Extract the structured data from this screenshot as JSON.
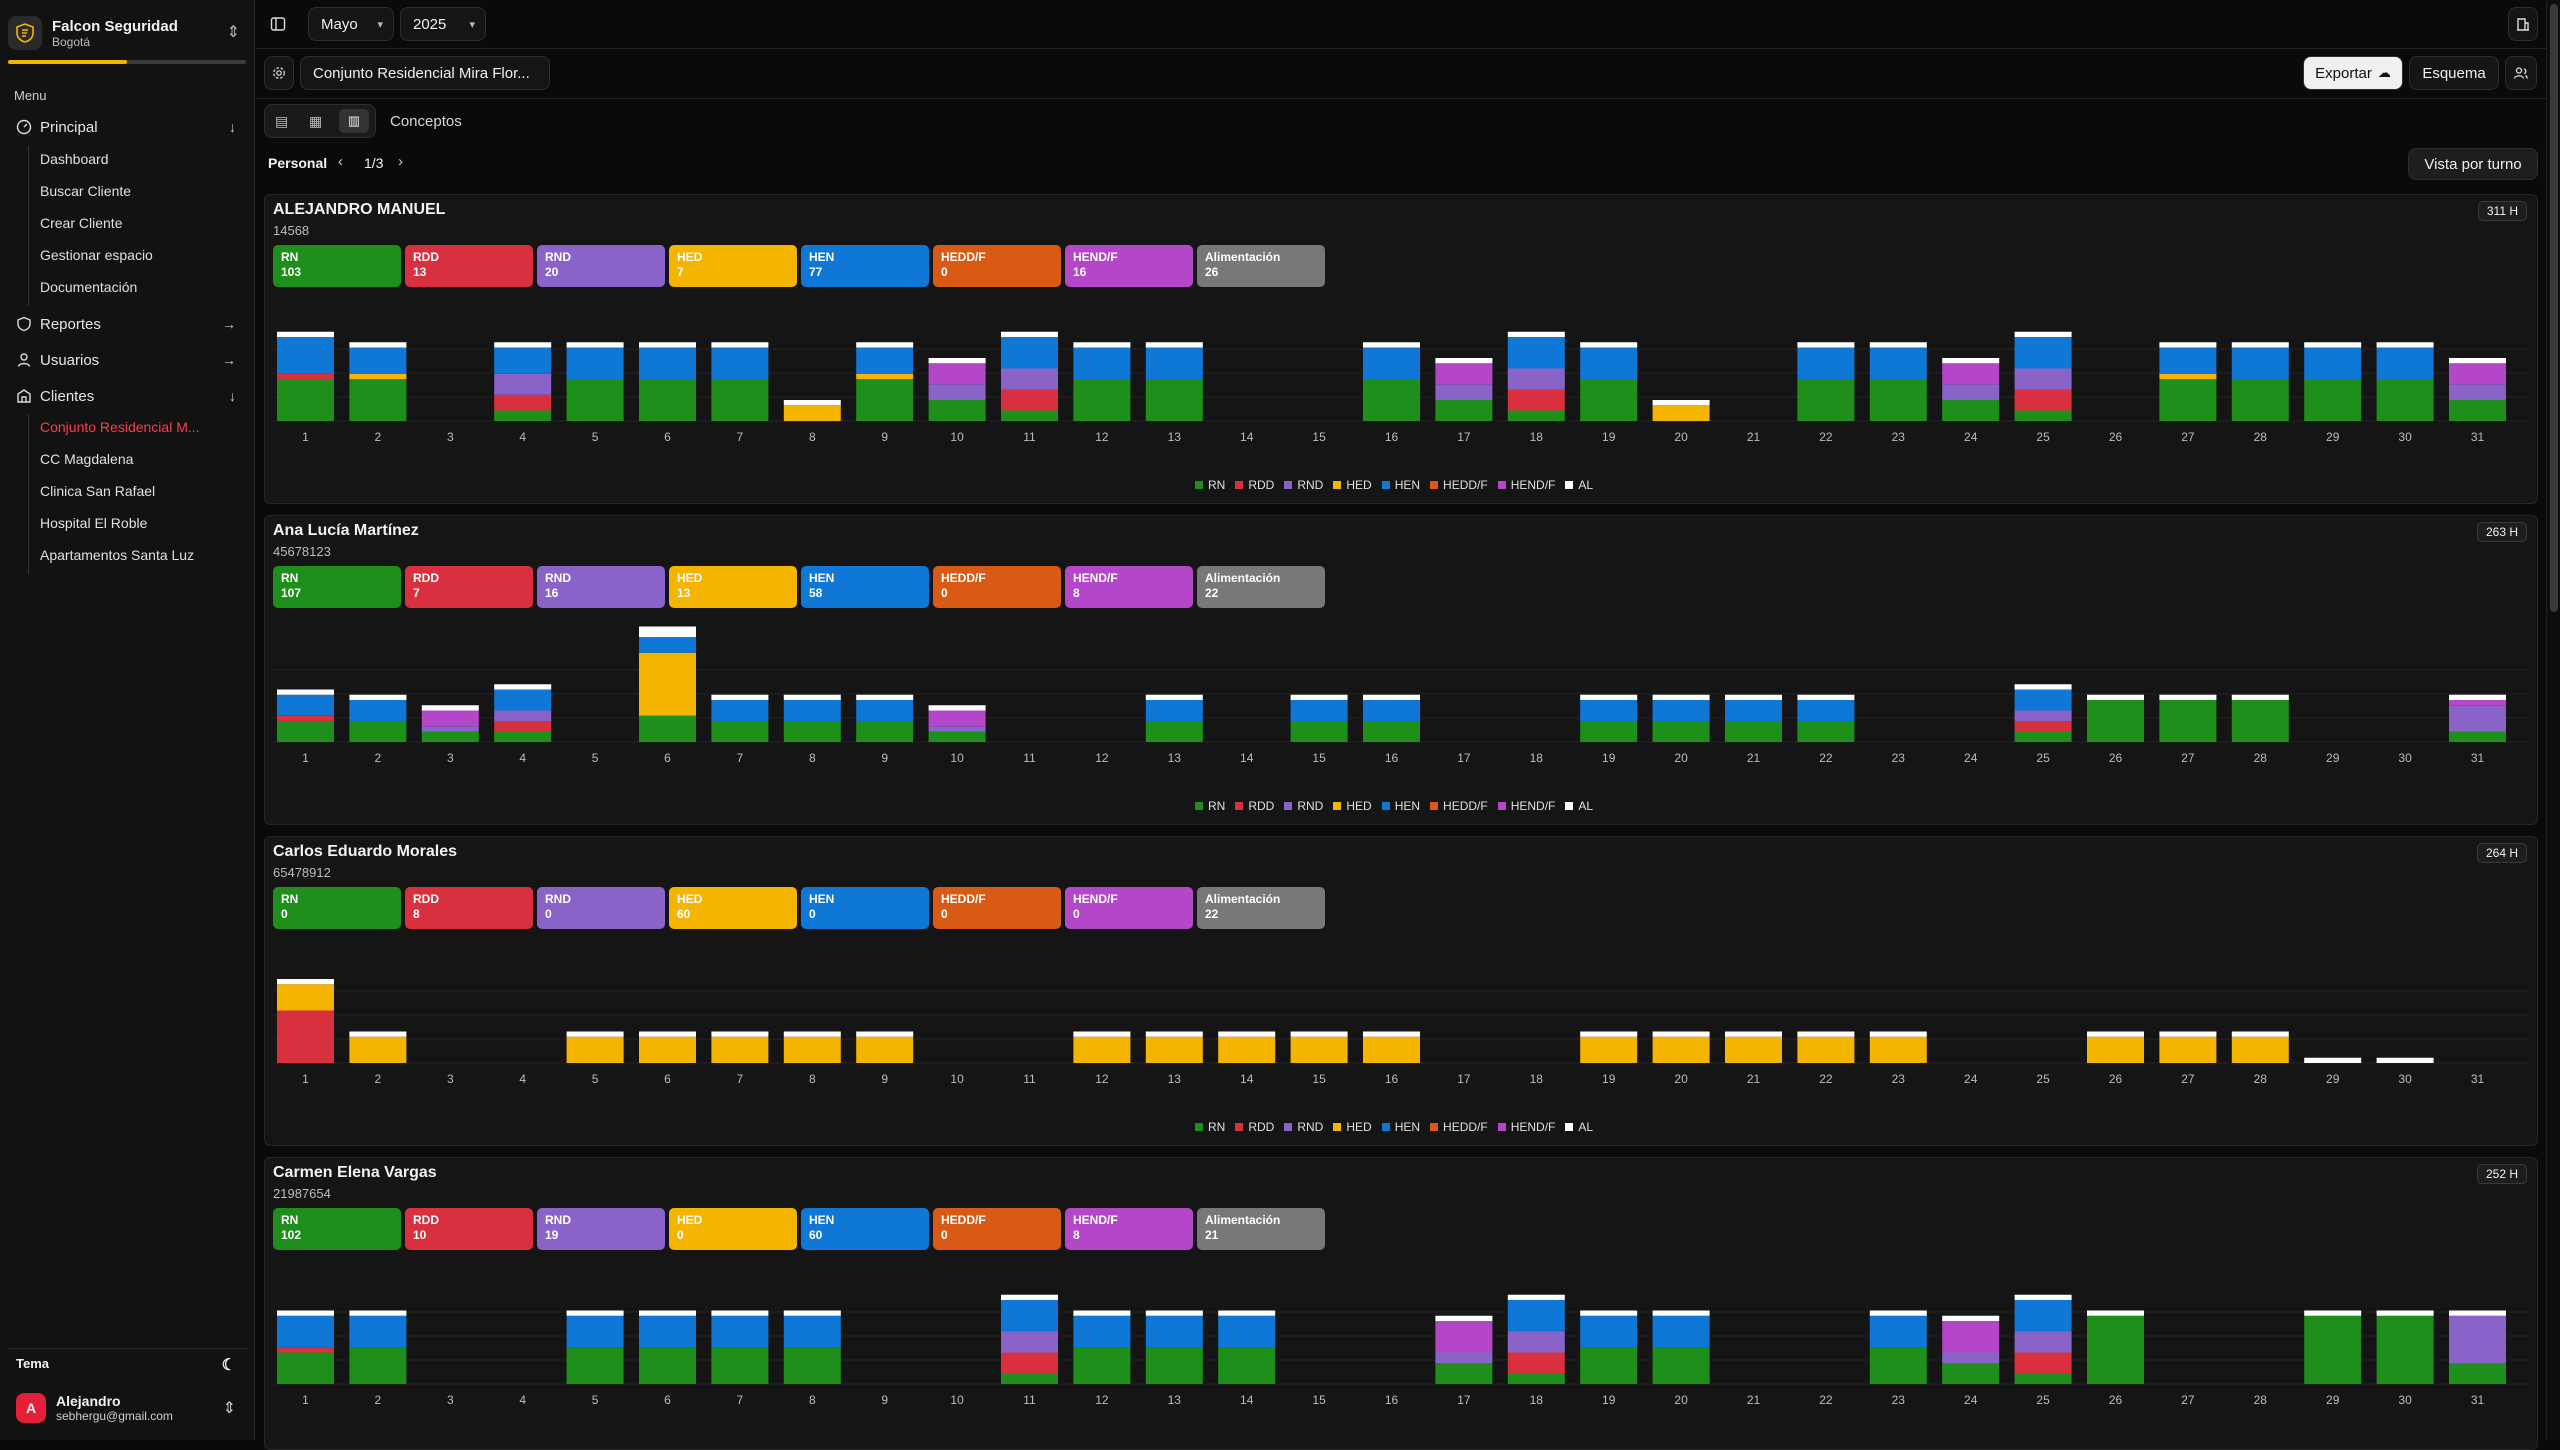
{
  "org": {
    "name": "Falcon Seguridad",
    "city": "Bogotá"
  },
  "menu": {
    "label": "Menu",
    "principal": "Principal",
    "principal_items": [
      "Dashboard",
      "Buscar Cliente",
      "Crear Cliente",
      "Gestionar espacio",
      "Documentación"
    ],
    "reportes": "Reportes",
    "usuarios": "Usuarios",
    "clientes": "Clientes",
    "clientes_items": [
      "Conjunto Residencial M...",
      "CC Magdalena",
      "Clinica San Rafael",
      "Hospital El Roble",
      "Apartamentos Santa Luz"
    ]
  },
  "theme_label": "Tema",
  "user": {
    "name": "Alejandro",
    "email": "sebhergu@gmail.com",
    "initial": "A"
  },
  "header": {
    "month": "Mayo",
    "year": "2025",
    "client": "Conjunto Residencial Mira Flor...",
    "export": "Exportar",
    "schema": "Esquema"
  },
  "view": {
    "concepts": "Conceptos",
    "personal": "Personal",
    "page": "1/3",
    "shift_view": "Vista por turno"
  },
  "colors": {
    "RN": "#1f8f1c",
    "RDD": "#d93040",
    "RND": "#8a63c9",
    "HED": "#f5b400",
    "HEN": "#0f78d6",
    "HEDDF": "#d85a14",
    "HENDF": "#b447c9",
    "AL": "#ffffff",
    "ALIM": "#787878"
  },
  "legend": [
    "RN",
    "RDD",
    "RND",
    "HED",
    "HEN",
    "HEDD/F",
    "HEND/F",
    "AL"
  ],
  "people": [
    {
      "name": "ALEJANDRO MANUEL",
      "id": "14568",
      "hours": "311 H",
      "chips": [
        {
          "label": "RN",
          "value": "103"
        },
        {
          "label": "RDD",
          "value": "13"
        },
        {
          "label": "RND",
          "value": "20"
        },
        {
          "label": "HED",
          "value": "7"
        },
        {
          "label": "HEN",
          "value": "77"
        },
        {
          "label": "HEDD/F",
          "value": "0"
        },
        {
          "label": "HEND/F",
          "value": "16"
        },
        {
          "label": "Alimentación",
          "value": "26"
        }
      ]
    },
    {
      "name": "Ana Lucía Martínez",
      "id": "45678123",
      "hours": "263 H",
      "chips": [
        {
          "label": "RN",
          "value": "107"
        },
        {
          "label": "RDD",
          "value": "7"
        },
        {
          "label": "RND",
          "value": "16"
        },
        {
          "label": "HED",
          "value": "13"
        },
        {
          "label": "HEN",
          "value": "58"
        },
        {
          "label": "HEDD/F",
          "value": "0"
        },
        {
          "label": "HEND/F",
          "value": "8"
        },
        {
          "label": "Alimentación",
          "value": "22"
        }
      ]
    },
    {
      "name": "Carlos Eduardo Morales",
      "id": "65478912",
      "hours": "264 H",
      "chips": [
        {
          "label": "RN",
          "value": "0"
        },
        {
          "label": "RDD",
          "value": "8"
        },
        {
          "label": "RND",
          "value": "0"
        },
        {
          "label": "HED",
          "value": "60"
        },
        {
          "label": "HEN",
          "value": "0"
        },
        {
          "label": "HEDD/F",
          "value": "0"
        },
        {
          "label": "HEND/F",
          "value": "0"
        },
        {
          "label": "Alimentación",
          "value": "22"
        }
      ]
    },
    {
      "name": "Carmen Elena Vargas",
      "id": "21987654",
      "hours": "252 H",
      "chips": [
        {
          "label": "RN",
          "value": "102"
        },
        {
          "label": "RDD",
          "value": "10"
        },
        {
          "label": "RND",
          "value": "19"
        },
        {
          "label": "HED",
          "value": "0"
        },
        {
          "label": "HEN",
          "value": "60"
        },
        {
          "label": "HEDD/F",
          "value": "0"
        },
        {
          "label": "HEND/F",
          "value": "8"
        },
        {
          "label": "Alimentación",
          "value": "21"
        }
      ]
    }
  ],
  "chart_data": [
    {
      "type": "bar",
      "title": "ALEJANDRO MANUEL",
      "stacked": true,
      "categories": [
        "1",
        "2",
        "3",
        "4",
        "5",
        "6",
        "7",
        "8",
        "9",
        "10",
        "11",
        "12",
        "13",
        "14",
        "15",
        "16",
        "17",
        "18",
        "19",
        "20",
        "21",
        "22",
        "23",
        "24",
        "25",
        "26",
        "27",
        "28",
        "29",
        "30",
        "31"
      ],
      "series_order": [
        "RN",
        "RDD",
        "RND",
        "HED",
        "HEN",
        "HENDF",
        "AL"
      ],
      "values": [
        [
          4,
          0.5,
          0,
          0,
          3.5,
          0,
          0.5
        ],
        [
          4,
          0,
          0,
          0.5,
          2.5,
          0,
          0.5
        ],
        [],
        [
          1,
          1.5,
          2,
          0,
          2.5,
          0,
          0.5
        ],
        [
          4,
          0,
          0,
          0,
          3,
          0,
          0.5
        ],
        [
          4,
          0,
          0,
          0,
          3,
          0,
          0.5
        ],
        [
          4,
          0,
          0,
          0,
          3,
          0,
          0.5
        ],
        [
          0,
          0,
          0,
          1.5,
          0,
          0,
          0.5
        ],
        [
          4,
          0,
          0,
          0.5,
          2.5,
          0,
          0.5
        ],
        [
          2,
          0,
          1.5,
          0,
          0,
          2,
          0.5
        ],
        [
          1,
          2,
          2,
          0,
          3,
          0,
          0.5
        ],
        [
          4,
          0,
          0,
          0,
          3,
          0,
          0.5
        ],
        [
          4,
          0,
          0,
          0,
          3,
          0,
          0.5
        ],
        [],
        [],
        [
          4,
          0,
          0,
          0,
          3,
          0,
          0.5
        ],
        [
          2,
          0,
          1.5,
          0,
          0,
          2,
          0.5
        ],
        [
          1,
          2,
          2,
          0,
          3,
          0,
          0.5
        ],
        [
          4,
          0,
          0,
          0,
          3,
          0,
          0.5
        ],
        [
          0,
          0,
          0,
          1.5,
          0,
          0,
          0.5
        ],
        [],
        [
          4,
          0,
          0,
          0,
          3,
          0,
          0.5
        ],
        [
          4,
          0,
          0,
          0,
          3,
          0,
          0.5
        ],
        [
          2,
          0,
          1.5,
          0,
          0,
          2,
          0.5
        ],
        [
          1,
          2,
          2,
          0,
          3,
          0,
          0.5
        ],
        [],
        [
          4,
          0,
          0,
          0.5,
          2.5,
          0,
          0.5
        ],
        [
          4,
          0,
          0,
          0,
          3,
          0,
          0.5
        ],
        [
          4,
          0,
          0,
          0,
          3,
          0,
          0.5
        ],
        [
          4,
          0,
          0,
          0,
          3,
          0,
          0.5
        ],
        [
          2,
          0,
          1.5,
          0,
          0,
          2,
          0.5
        ]
      ]
    },
    {
      "type": "bar",
      "title": "Ana Lucía Martínez",
      "stacked": true,
      "categories": [
        "1",
        "2",
        "3",
        "4",
        "5",
        "6",
        "7",
        "8",
        "9",
        "10",
        "11",
        "12",
        "13",
        "14",
        "15",
        "16",
        "17",
        "18",
        "19",
        "20",
        "21",
        "22",
        "23",
        "24",
        "25",
        "26",
        "27",
        "28",
        "29",
        "30",
        "31"
      ],
      "series_order": [
        "RN",
        "RDD",
        "RND",
        "HED",
        "HEN",
        "HENDF",
        "AL"
      ],
      "values": [
        [
          2,
          0.5,
          0,
          0,
          2,
          0,
          0.5
        ],
        [
          2,
          0,
          0,
          0,
          2,
          0,
          0.5
        ],
        [
          1,
          0,
          0.5,
          0,
          0,
          1.5,
          0.5
        ],
        [
          1,
          1,
          1,
          0,
          2,
          0,
          0.5
        ],
        [],
        [
          2.5,
          0,
          0,
          6,
          1.5,
          0,
          1
        ],
        [
          2,
          0,
          0,
          0,
          2,
          0,
          0.5
        ],
        [
          2,
          0,
          0,
          0,
          2,
          0,
          0.5
        ],
        [
          2,
          0,
          0,
          0,
          2,
          0,
          0.5
        ],
        [
          1,
          0,
          0.5,
          0,
          0,
          1.5,
          0.5
        ],
        [],
        [],
        [
          2,
          0,
          0,
          0,
          2,
          0,
          0.5
        ],
        [],
        [
          2,
          0,
          0,
          0,
          2,
          0,
          0.5
        ],
        [
          2,
          0,
          0,
          0,
          2,
          0,
          0.5
        ],
        [],
        [],
        [
          2,
          0,
          0,
          0,
          2,
          0,
          0.5
        ],
        [
          2,
          0,
          0,
          0,
          2,
          0,
          0.5
        ],
        [
          2,
          0,
          0,
          0,
          2,
          0,
          0.5
        ],
        [
          2,
          0,
          0,
          0,
          2,
          0,
          0.5
        ],
        [],
        [],
        [
          1,
          1,
          1,
          0,
          2,
          0,
          0.5
        ],
        [
          4,
          0,
          0,
          0,
          0,
          0,
          0.5
        ],
        [
          4,
          0,
          0,
          0,
          0,
          0,
          0.5
        ],
        [
          4,
          0,
          0,
          0,
          0,
          0,
          0.5
        ],
        [],
        [],
        [
          1,
          0,
          2.5,
          0,
          0,
          0.5,
          0.5
        ]
      ]
    },
    {
      "type": "bar",
      "title": "Carlos Eduardo Morales",
      "stacked": true,
      "categories": [
        "1",
        "2",
        "3",
        "4",
        "5",
        "6",
        "7",
        "8",
        "9",
        "10",
        "11",
        "12",
        "13",
        "14",
        "15",
        "16",
        "17",
        "18",
        "19",
        "20",
        "21",
        "22",
        "23",
        "24",
        "25",
        "26",
        "27",
        "28",
        "29",
        "30",
        "31"
      ],
      "series_order": [
        "RN",
        "RDD",
        "RND",
        "HED",
        "HEN",
        "HENDF",
        "AL"
      ],
      "values": [
        [
          0,
          5,
          0,
          2.5,
          0,
          0,
          0.5
        ],
        [
          0,
          0,
          0,
          2.5,
          0,
          0,
          0.5
        ],
        [],
        [],
        [
          0,
          0,
          0,
          2.5,
          0,
          0,
          0.5
        ],
        [
          0,
          0,
          0,
          2.5,
          0,
          0,
          0.5
        ],
        [
          0,
          0,
          0,
          2.5,
          0,
          0,
          0.5
        ],
        [
          0,
          0,
          0,
          2.5,
          0,
          0,
          0.5
        ],
        [
          0,
          0,
          0,
          2.5,
          0,
          0,
          0.5
        ],
        [],
        [],
        [
          0,
          0,
          0,
          2.5,
          0,
          0,
          0.5
        ],
        [
          0,
          0,
          0,
          2.5,
          0,
          0,
          0.5
        ],
        [
          0,
          0,
          0,
          2.5,
          0,
          0,
          0.5
        ],
        [
          0,
          0,
          0,
          2.5,
          0,
          0,
          0.5
        ],
        [
          0,
          0,
          0,
          2.5,
          0,
          0,
          0.5
        ],
        [],
        [],
        [
          0,
          0,
          0,
          2.5,
          0,
          0,
          0.5
        ],
        [
          0,
          0,
          0,
          2.5,
          0,
          0,
          0.5
        ],
        [
          0,
          0,
          0,
          2.5,
          0,
          0,
          0.5
        ],
        [
          0,
          0,
          0,
          2.5,
          0,
          0,
          0.5
        ],
        [
          0,
          0,
          0,
          2.5,
          0,
          0,
          0.5
        ],
        [],
        [],
        [
          0,
          0,
          0,
          2.5,
          0,
          0,
          0.5
        ],
        [
          0,
          0,
          0,
          2.5,
          0,
          0,
          0.5
        ],
        [
          0,
          0,
          0,
          2.5,
          0,
          0,
          0.5
        ],
        [
          0,
          0,
          0,
          0,
          0,
          0,
          0.5
        ],
        [
          0,
          0,
          0,
          0,
          0,
          0,
          0.5
        ],
        []
      ]
    },
    {
      "type": "bar",
      "title": "Carmen Elena Vargas",
      "stacked": true,
      "categories": [
        "1",
        "2",
        "3",
        "4",
        "5",
        "6",
        "7",
        "8",
        "9",
        "10",
        "11",
        "12",
        "13",
        "14",
        "15",
        "16",
        "17",
        "18",
        "19",
        "20",
        "21",
        "22",
        "23",
        "24",
        "25",
        "26",
        "27",
        "28",
        "29",
        "30",
        "31"
      ],
      "series_order": [
        "RN",
        "RDD",
        "RND",
        "HED",
        "HEN",
        "HENDF",
        "AL"
      ],
      "values": [
        [
          3,
          0.5,
          0,
          0,
          3,
          0,
          0.5
        ],
        [
          3.5,
          0,
          0,
          0,
          3,
          0,
          0.5
        ],
        [],
        [],
        [
          3.5,
          0,
          0,
          0,
          3,
          0,
          0.5
        ],
        [
          3.5,
          0,
          0,
          0,
          3,
          0,
          0.5
        ],
        [
          3.5,
          0,
          0,
          0,
          3,
          0,
          0.5
        ],
        [
          3.5,
          0,
          0,
          0,
          3,
          0,
          0.5
        ],
        [],
        [],
        [
          1,
          2,
          2,
          0,
          3,
          0,
          0.5
        ],
        [
          3.5,
          0,
          0,
          0,
          3,
          0,
          0.5
        ],
        [
          3.5,
          0,
          0,
          0,
          3,
          0,
          0.5
        ],
        [
          3.5,
          0,
          0,
          0,
          3,
          0,
          0.5
        ],
        [],
        [],
        [
          2,
          0,
          1,
          0,
          0,
          3,
          0.5
        ],
        [
          1,
          2,
          2,
          0,
          3,
          0,
          0.5
        ],
        [
          3.5,
          0,
          0,
          0,
          3,
          0,
          0.5
        ],
        [
          3.5,
          0,
          0,
          0,
          3,
          0,
          0.5
        ],
        [],
        [],
        [
          3.5,
          0,
          0,
          0,
          3,
          0,
          0.5
        ],
        [
          2,
          0,
          1,
          0,
          0,
          3,
          0.5
        ],
        [
          1,
          2,
          2,
          0,
          3,
          0,
          0.5
        ],
        [
          6.5,
          0,
          0,
          0,
          0,
          0,
          0.5
        ],
        [],
        [],
        [
          6.5,
          0,
          0,
          0,
          0,
          0,
          0.5
        ],
        [
          6.5,
          0,
          0,
          0,
          0,
          0,
          0.5
        ],
        [
          2,
          0,
          4.5,
          0,
          0,
          0,
          0.5
        ]
      ]
    }
  ]
}
